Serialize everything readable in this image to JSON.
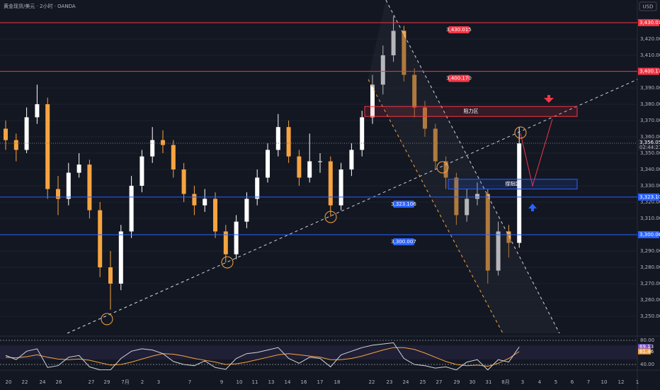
{
  "chart_data": {
    "type": "candlestick",
    "title": "黄金现货/美元 · 2小时 · OANDA",
    "currency": "USD",
    "ylim": [
      3238.7,
      3443.9
    ],
    "yticks": [
      {
        "value": 3250,
        "label": "3,250.000"
      },
      {
        "value": 3260,
        "label": "3,260.000"
      },
      {
        "value": 3270,
        "label": "3,270.000"
      },
      {
        "value": 3280,
        "label": "3,280.000"
      },
      {
        "value": 3290,
        "label": "3,290.000"
      },
      {
        "value": 3300,
        "label": "3,300.000"
      },
      {
        "value": 3310,
        "label": "3,310.000"
      },
      {
        "value": 3320,
        "label": "3,320.000"
      },
      {
        "value": 3330,
        "label": "3,330.000"
      },
      {
        "value": 3340,
        "label": "3,340.000"
      },
      {
        "value": 3350,
        "label": "3,350.000"
      },
      {
        "value": 3360,
        "label": "3,360.000"
      },
      {
        "value": 3370,
        "label": "3,370.000"
      },
      {
        "value": 3380,
        "label": "3,380.000"
      },
      {
        "value": 3390,
        "label": "3,390.000"
      },
      {
        "value": 3400,
        "label": "3,400.000"
      },
      {
        "value": 3410,
        "label": "3,410.000"
      },
      {
        "value": 3420,
        "label": "3,420.000"
      },
      {
        "value": 3430,
        "label": "3,430.000"
      }
    ],
    "categories": [
      "20",
      "22",
      "24",
      "26",
      "27",
      "29",
      "7月",
      "2",
      "3",
      "7",
      "9",
      "10",
      "11",
      "13",
      "14",
      "16",
      "17",
      "18",
      "22",
      "23",
      "24",
      "25",
      "27",
      "29",
      "30",
      "31",
      "8月",
      "3",
      "4",
      "5",
      "6",
      "7",
      "10",
      "12",
      "1"
    ],
    "up_color": "#ffffff",
    "down_color": "#f7a440",
    "candles": [
      [
        3365,
        3370,
        3352,
        3358
      ],
      [
        3358,
        3362,
        3345,
        3352
      ],
      [
        3352,
        3378,
        3350,
        3372
      ],
      [
        3372,
        3392,
        3368,
        3380
      ],
      [
        3380,
        3384,
        3322,
        3328
      ],
      [
        3328,
        3336,
        3312,
        3322
      ],
      [
        3322,
        3344,
        3318,
        3338
      ],
      [
        3338,
        3350,
        3335,
        3343
      ],
      [
        3343,
        3346,
        3310,
        3315
      ],
      [
        3315,
        3320,
        3274,
        3280
      ],
      [
        3280,
        3290,
        3254,
        3270
      ],
      [
        3270,
        3306,
        3266,
        3302
      ],
      [
        3302,
        3336,
        3298,
        3330
      ],
      [
        3330,
        3352,
        3326,
        3348
      ],
      [
        3348,
        3366,
        3344,
        3358
      ],
      [
        3358,
        3364,
        3350,
        3355
      ],
      [
        3355,
        3358,
        3335,
        3340
      ],
      [
        3340,
        3344,
        3320,
        3325
      ],
      [
        3325,
        3330,
        3312,
        3318
      ],
      [
        3318,
        3328,
        3314,
        3322
      ],
      [
        3322,
        3326,
        3298,
        3302
      ],
      [
        3302,
        3306,
        3283,
        3288
      ],
      [
        3288,
        3312,
        3285,
        3308
      ],
      [
        3308,
        3326,
        3304,
        3322
      ],
      [
        3322,
        3340,
        3318,
        3335
      ],
      [
        3335,
        3356,
        3332,
        3352
      ],
      [
        3352,
        3374,
        3348,
        3366
      ],
      [
        3366,
        3370,
        3344,
        3348
      ],
      [
        3348,
        3352,
        3330,
        3335
      ],
      [
        3335,
        3362,
        3332,
        3345
      ],
      [
        3345,
        3350,
        3338,
        3345
      ],
      [
        3345,
        3348,
        3311,
        3318
      ],
      [
        3318,
        3344,
        3315,
        3340
      ],
      [
        3340,
        3356,
        3336,
        3352
      ],
      [
        3352,
        3376,
        3348,
        3372
      ],
      [
        3372,
        3398,
        3368,
        3392
      ],
      [
        3392,
        3416,
        3386,
        3410
      ],
      [
        3410,
        3434,
        3406,
        3425
      ],
      [
        3425,
        3428,
        3394,
        3398
      ],
      [
        3398,
        3402,
        3372,
        3378
      ],
      [
        3378,
        3382,
        3360,
        3365
      ],
      [
        3365,
        3368,
        3340,
        3345
      ],
      [
        3345,
        3348,
        3328,
        3335
      ],
      [
        3335,
        3338,
        3306,
        3312
      ],
      [
        3312,
        3328,
        3308,
        3322
      ],
      [
        3322,
        3332,
        3318,
        3325
      ],
      [
        3325,
        3328,
        3270,
        3278
      ],
      [
        3278,
        3308,
        3275,
        3302
      ],
      [
        3302,
        3306,
        3286,
        3295
      ],
      [
        3295,
        3366,
        3292,
        3356
      ]
    ],
    "levels": [
      {
        "value": 3430.015,
        "label": "3,430.015",
        "color": "#f23645"
      },
      {
        "value": 3400.17,
        "label": "3,400.170",
        "color": "#f23645"
      },
      {
        "value": 3323.106,
        "label": "3,323.106",
        "color": "#2962ff"
      },
      {
        "value": 3300.007,
        "label": "3,300.007",
        "color": "#2962ff"
      }
    ],
    "zones": [
      {
        "label": "阻力区",
        "top": 3378.6,
        "bottom": 3372.5,
        "color": "#f23645"
      },
      {
        "label": "撑阻区",
        "top": 3334,
        "bottom": 3328,
        "color": "#2962ff"
      }
    ],
    "last_price": {
      "value": 3356.055,
      "label": "3,356.055"
    },
    "countdown": "02:44:21",
    "rsi": {
      "ylim": [
        30.6,
        84.7
      ],
      "yticks": [
        {
          "value": 80,
          "label": "80.00"
        },
        {
          "value": 40,
          "label": "40.00"
        }
      ],
      "values": [
        55,
        48,
        62,
        66,
        35,
        38,
        52,
        55,
        36,
        31,
        31,
        50,
        62,
        66,
        64,
        58,
        45,
        40,
        38,
        46,
        35,
        32,
        50,
        58,
        60,
        64,
        68,
        50,
        42,
        52,
        50,
        36,
        56,
        62,
        68,
        72,
        74,
        76,
        50,
        40,
        38,
        34,
        36,
        31,
        44,
        48,
        31,
        48,
        44,
        69.13
      ],
      "value_label": "69.13",
      "ma": [
        52,
        51,
        53,
        56,
        52,
        49,
        48,
        49,
        47,
        43,
        39,
        40,
        44,
        49,
        54,
        58,
        57,
        54,
        50,
        47,
        44,
        40,
        41,
        44,
        48,
        52,
        56,
        58,
        56,
        54,
        52,
        48,
        48,
        50,
        54,
        59,
        64,
        68,
        68,
        65,
        59,
        52,
        45,
        40,
        38,
        39,
        37,
        42,
        50,
        61.46
      ],
      "ma_label": "61.46"
    }
  }
}
